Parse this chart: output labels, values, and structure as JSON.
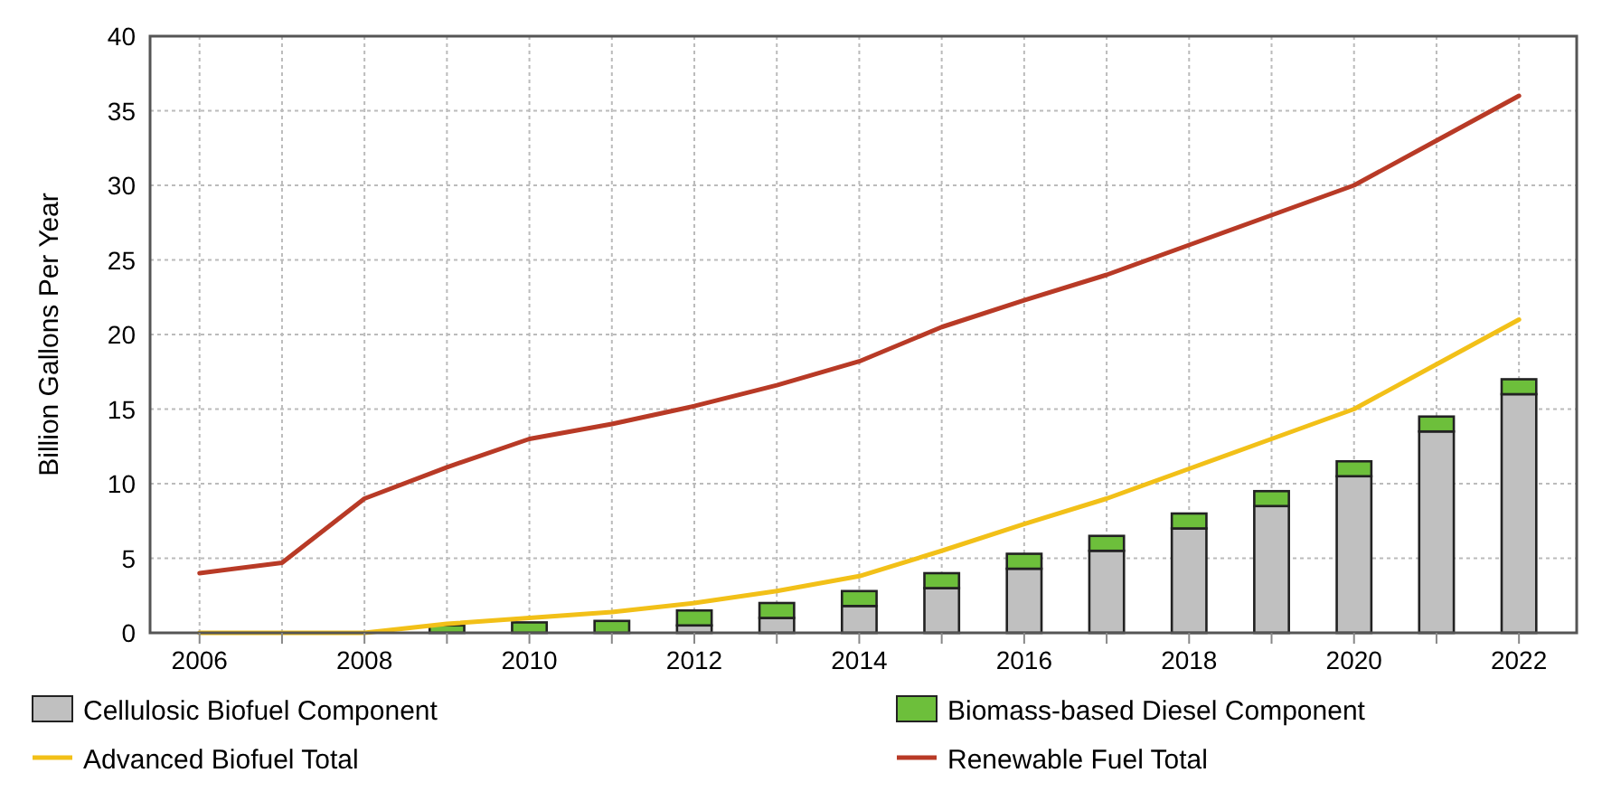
{
  "chart_data": {
    "type": "bar",
    "ylabel": "Billion Gallons Per Year",
    "stacked": true,
    "grid": true,
    "legend": "bottom",
    "xlim": [
      2005.4,
      2022.7
    ],
    "xticks": [
      2006,
      {
        "value": 2007,
        "label": null
      },
      2008,
      {
        "value": 2009,
        "label": null
      },
      2010,
      {
        "value": 2011,
        "label": null
      },
      2012,
      {
        "value": 2013,
        "label": null
      },
      2014,
      {
        "value": 2015,
        "label": null
      },
      2016,
      {
        "value": 2017,
        "label": null
      },
      2018,
      {
        "value": 2019,
        "label": null
      },
      2020,
      {
        "value": 2021,
        "label": null
      },
      2022
    ],
    "ylim": [
      0,
      40
    ],
    "yticks": [
      0,
      5,
      10,
      15,
      20,
      25,
      30,
      35,
      40
    ],
    "series": [
      {
        "name": "Cellulosic Biofuel Component",
        "color": "#c0c0c0",
        "x": [
          2009,
          2010,
          2011,
          2012,
          2013,
          2014,
          2015,
          2016,
          2017,
          2018,
          2019,
          2020,
          2021,
          2022
        ],
        "values": [
          0,
          0,
          0,
          0.5,
          1.0,
          1.8,
          3.0,
          4.3,
          5.5,
          7.0,
          8.5,
          10.5,
          13.5,
          16.0
        ]
      },
      {
        "name": "Biomass-based Diesel Component",
        "color": "#6dbf3b",
        "x": [
          2009,
          2010,
          2011,
          2012,
          2013,
          2014,
          2015,
          2016,
          2017,
          2018,
          2019,
          2020,
          2021,
          2022
        ],
        "values": [
          0.5,
          0.7,
          0.8,
          1.0,
          1.0,
          1.0,
          1.0,
          1.0,
          1.0,
          1.0,
          1.0,
          1.0,
          1.0,
          1.0
        ]
      },
      {
        "name": "Advanced Biofuel Total",
        "type": "line",
        "color": "#f2c018",
        "x": [
          2006,
          2007,
          2008,
          2009,
          2010,
          2011,
          2012,
          2013,
          2014,
          2015,
          2016,
          2017,
          2018,
          2019,
          2020,
          2021,
          2022
        ],
        "values": [
          0,
          0,
          0,
          0.6,
          1.0,
          1.4,
          2.0,
          2.8,
          3.8,
          5.5,
          7.3,
          9.0,
          11.0,
          13.0,
          15.0,
          18.0,
          21.0
        ]
      },
      {
        "name": "Renewable Fuel Total",
        "type": "line",
        "color": "#b83a26",
        "x": [
          2006,
          2007,
          2008,
          2009,
          2010,
          2011,
          2012,
          2013,
          2014,
          2015,
          2016,
          2017,
          2018,
          2019,
          2020,
          2021,
          2022
        ],
        "values": [
          4.0,
          4.7,
          9.0,
          11.1,
          13.0,
          14.0,
          15.2,
          16.6,
          18.2,
          20.5,
          22.3,
          24.0,
          26.0,
          28.0,
          30.0,
          33.0,
          36.0
        ]
      }
    ]
  }
}
